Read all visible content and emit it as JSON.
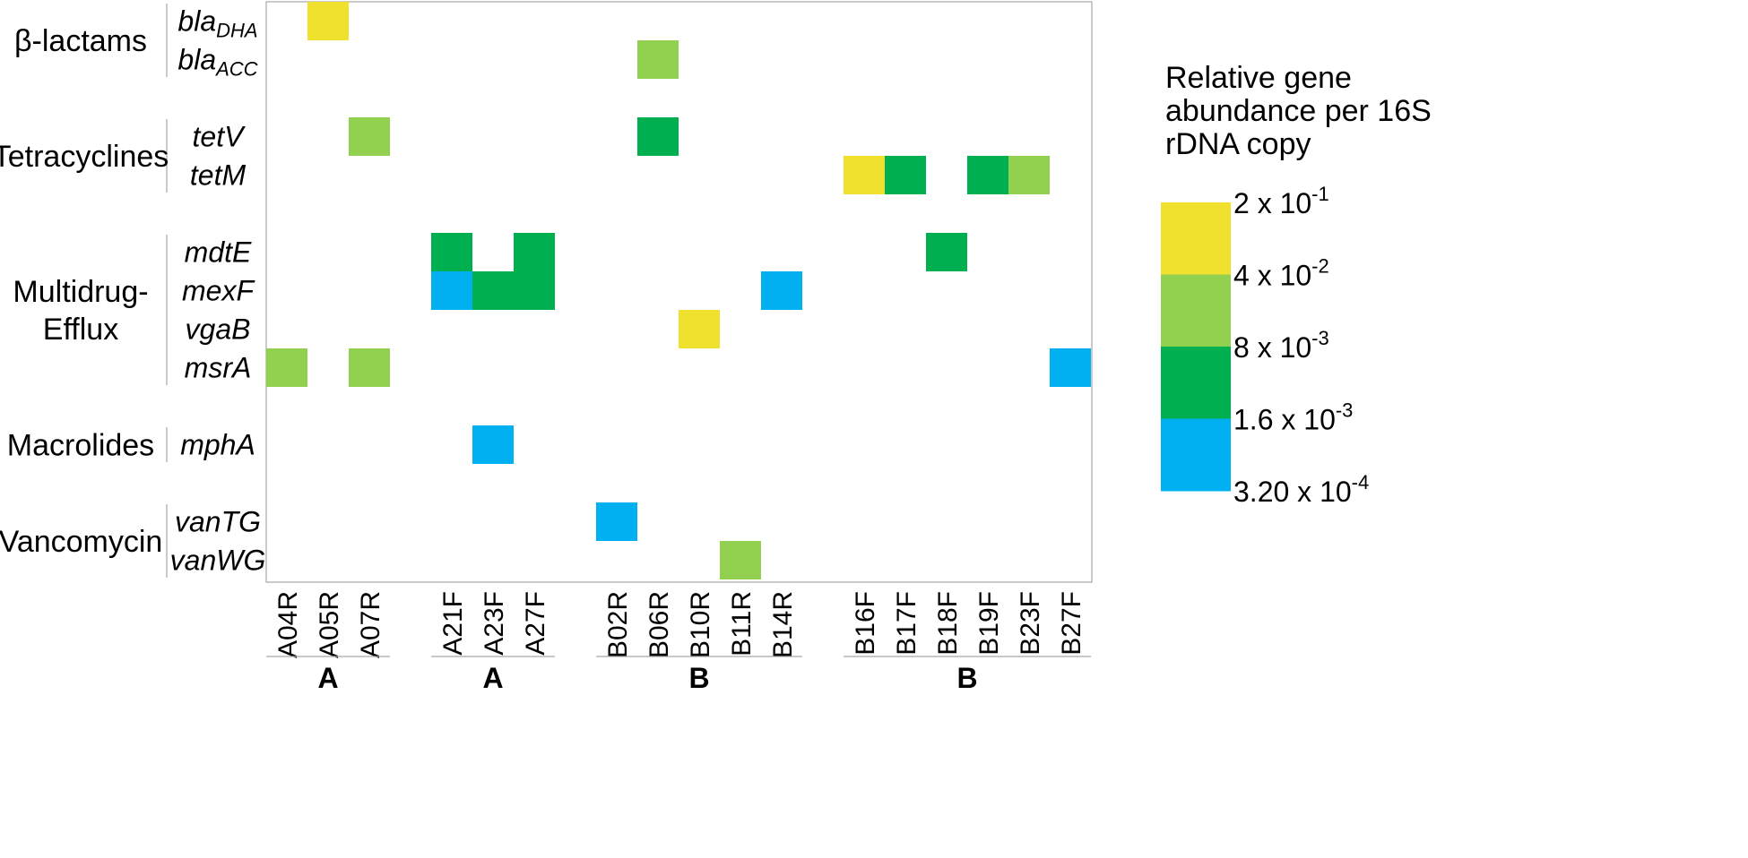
{
  "chart_data": {
    "type": "heatmap",
    "columns": [
      "A04R",
      "A05R",
      "A07R",
      "A21F",
      "A23F",
      "A27F",
      "B02R",
      "B06R",
      "B10R",
      "B11R",
      "B14R",
      "B16F",
      "B17F",
      "B18F",
      "B19F",
      "B23F",
      "B27F"
    ],
    "column_groups": [
      {
        "label": "A",
        "columns": [
          "A04R",
          "A05R",
          "A07R"
        ]
      },
      {
        "label": "A",
        "columns": [
          "A21F",
          "A23F",
          "A27F"
        ]
      },
      {
        "label": "B",
        "columns": [
          "B02R",
          "B06R",
          "B10R",
          "B11R",
          "B14R"
        ]
      },
      {
        "label": "B",
        "columns": [
          "B16F",
          "B17F",
          "B18F",
          "B19F",
          "B23F",
          "B27F"
        ]
      }
    ],
    "categories": [
      {
        "label": "β-lactams",
        "genes": [
          {
            "base": "bla",
            "sub": "DHA"
          },
          {
            "base": "bla",
            "sub": "ACC"
          }
        ]
      },
      {
        "label": "Tetracyclines",
        "genes": [
          {
            "base": "tetV",
            "sub": ""
          },
          {
            "base": "tetM",
            "sub": ""
          }
        ]
      },
      {
        "label": "Multidrug-Efflux",
        "label_lines": [
          "Multidrug-",
          "Efflux"
        ],
        "genes": [
          {
            "base": "mdtE",
            "sub": ""
          },
          {
            "base": "mexF",
            "sub": ""
          },
          {
            "base": "vgaB",
            "sub": ""
          },
          {
            "base": "msrA",
            "sub": ""
          }
        ]
      },
      {
        "label": "Macrolides",
        "genes": [
          {
            "base": "mphA",
            "sub": ""
          }
        ]
      },
      {
        "label": "Vancomycin",
        "genes": [
          {
            "base": "vanTG",
            "sub": ""
          },
          {
            "base": "vanWG",
            "sub": ""
          }
        ]
      }
    ],
    "cells": [
      {
        "gene": "blaDHA",
        "column": "A05R",
        "bin": 0
      },
      {
        "gene": "blaACC",
        "column": "B06R",
        "bin": 1
      },
      {
        "gene": "tetV",
        "column": "A07R",
        "bin": 1
      },
      {
        "gene": "tetV",
        "column": "B06R",
        "bin": 2
      },
      {
        "gene": "tetM",
        "column": "B16F",
        "bin": 0
      },
      {
        "gene": "tetM",
        "column": "B17F",
        "bin": 2
      },
      {
        "gene": "tetM",
        "column": "B19F",
        "bin": 2
      },
      {
        "gene": "tetM",
        "column": "B23F",
        "bin": 1
      },
      {
        "gene": "mdtE",
        "column": "A21F",
        "bin": 2
      },
      {
        "gene": "mdtE",
        "column": "A27F",
        "bin": 2
      },
      {
        "gene": "mdtE",
        "column": "B18F",
        "bin": 2
      },
      {
        "gene": "mexF",
        "column": "A21F",
        "bin": 3
      },
      {
        "gene": "mexF",
        "column": "A23F",
        "bin": 2
      },
      {
        "gene": "mexF",
        "column": "A27F",
        "bin": 2
      },
      {
        "gene": "mexF",
        "column": "B14R",
        "bin": 3
      },
      {
        "gene": "vgaB",
        "column": "B10R",
        "bin": 0
      },
      {
        "gene": "msrA",
        "column": "A04R",
        "bin": 1
      },
      {
        "gene": "msrA",
        "column": "A07R",
        "bin": 1
      },
      {
        "gene": "msrA",
        "column": "B27F",
        "bin": 3
      },
      {
        "gene": "mphA",
        "column": "A23F",
        "bin": 3
      },
      {
        "gene": "vanTG",
        "column": "B02R",
        "bin": 3
      },
      {
        "gene": "vanWG",
        "column": "B11R",
        "bin": 1
      }
    ],
    "legend": {
      "title_lines": [
        "Relative gene",
        "abundance per 16S",
        "rDNA copy"
      ],
      "ticks": [
        {
          "mantissa": "2 x 10",
          "exp": "-1"
        },
        {
          "mantissa": "4 x 10",
          "exp": "-2"
        },
        {
          "mantissa": "8 x 10",
          "exp": "-3"
        },
        {
          "mantissa": "1.6 x 10",
          "exp": "-3"
        },
        {
          "mantissa": "3.20 x 10",
          "exp": "-4"
        }
      ],
      "bins": [
        {
          "from": "2 x 10^-1",
          "to": "4 x 10^-2",
          "color": "#F1E12F"
        },
        {
          "from": "4 x 10^-2",
          "to": "8 x 10^-3",
          "color": "#92D050"
        },
        {
          "from": "8 x 10^-3",
          "to": "1.6 x 10^-3",
          "color": "#00B050"
        },
        {
          "from": "1.6 x 10^-3",
          "to": "3.20 x 10^-4",
          "color": "#00B0F0"
        }
      ]
    }
  }
}
